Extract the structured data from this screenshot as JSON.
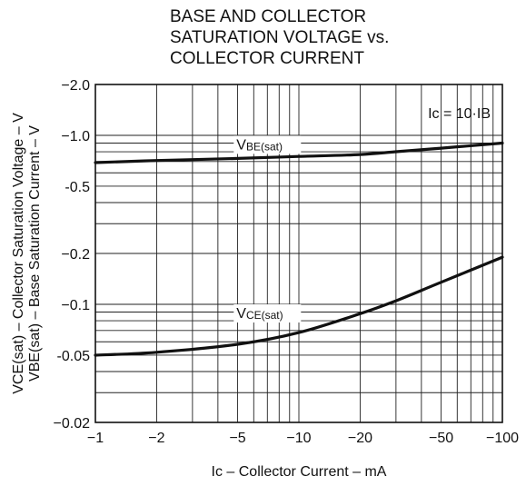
{
  "chart_data": {
    "type": "line",
    "title_lines": [
      "BASE AND COLLECTOR",
      "SATURATION VOLTAGE vs.",
      "COLLECTOR CURRENT"
    ],
    "xlabel": "Ic – Collector Current – mA",
    "ylabel_lines": [
      "VCE(sat) – Collector Saturation Voltage – V",
      "VBE(sat) – Base Saturation Current – V"
    ],
    "x_scale": "log",
    "y_scale": "log",
    "xlim": [
      -1,
      -100
    ],
    "ylim": [
      -0.02,
      -2.0
    ],
    "x_ticks": [
      -1,
      -2,
      -5,
      -10,
      -20,
      -50,
      -100
    ],
    "x_tick_labels": [
      "−1",
      "−2",
      "−5",
      "−10",
      "−20",
      "−50",
      "−100"
    ],
    "y_ticks": [
      -2.0,
      -1.0,
      -0.5,
      -0.2,
      -0.1,
      -0.05,
      -0.02
    ],
    "y_tick_labels": [
      "−2.0",
      "−1.0",
      "-0.5",
      "−0.2",
      "−0.1",
      "-0.05",
      "−0.02"
    ],
    "grid": true,
    "condition_note": "Ic = 10·IB",
    "series": [
      {
        "name": "VBE(sat)",
        "label_main": "V",
        "label_sub": "BE(sat)",
        "x": [
          -1,
          -2,
          -5,
          -10,
          -20,
          -30,
          -50,
          -100
        ],
        "y": [
          -0.69,
          -0.71,
          -0.73,
          -0.75,
          -0.77,
          -0.8,
          -0.84,
          -0.9
        ]
      },
      {
        "name": "VCE(sat)",
        "label_main": "V",
        "label_sub": "CE(sat)",
        "x": [
          -1,
          -2,
          -5,
          -10,
          -20,
          -30,
          -50,
          -100
        ],
        "y": [
          -0.05,
          -0.052,
          -0.058,
          -0.068,
          -0.088,
          -0.105,
          -0.135,
          -0.19
        ]
      }
    ]
  }
}
